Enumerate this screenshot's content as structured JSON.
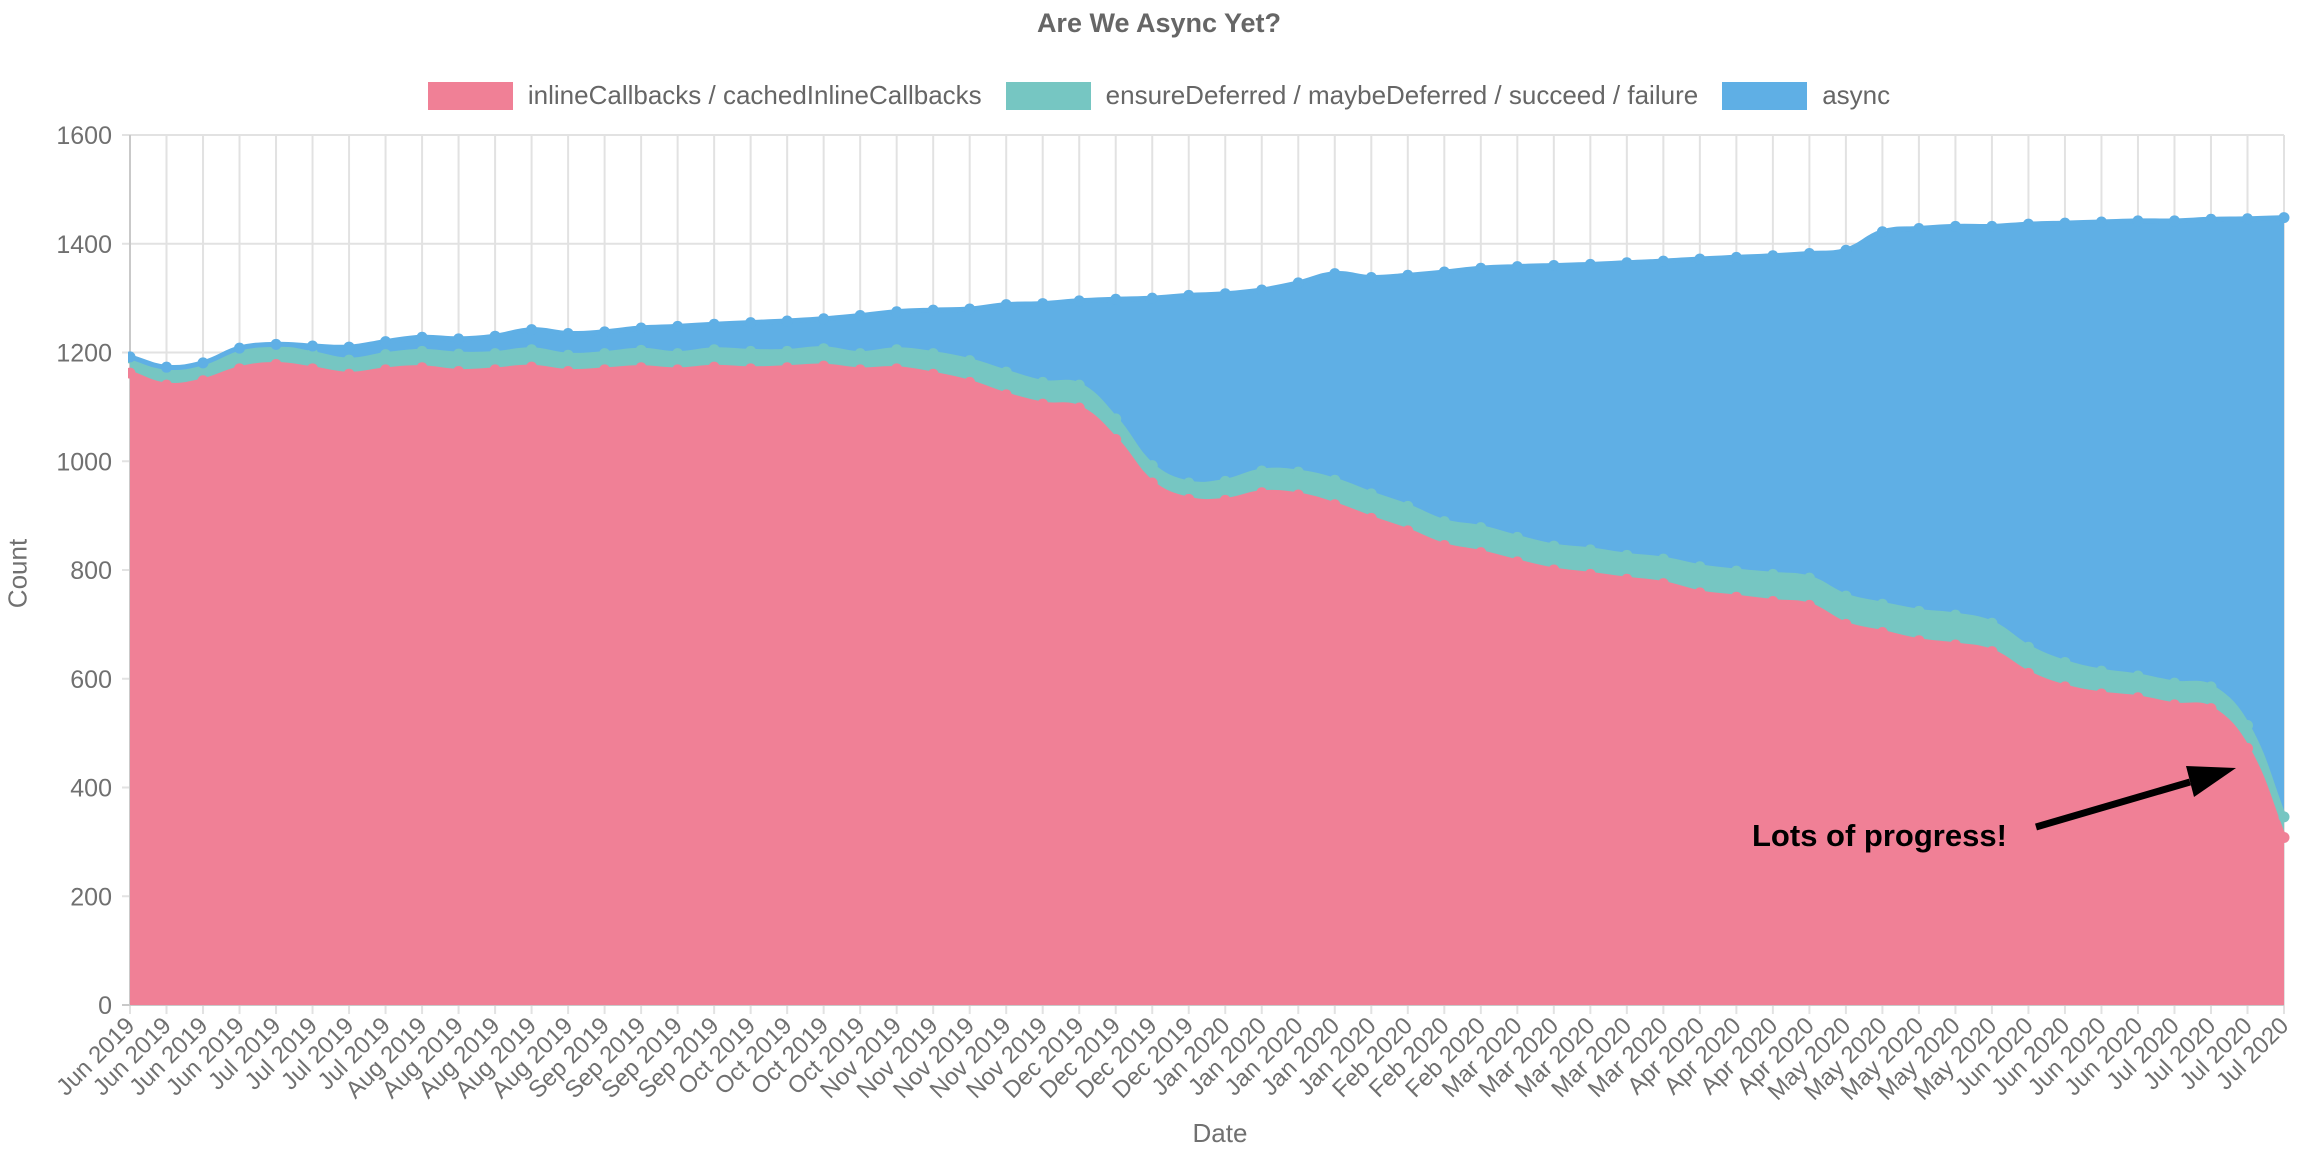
{
  "title": "Are We Async Yet?",
  "legend": [
    {
      "label": "inlineCallbacks / cachedInlineCallbacks",
      "color": "#F08096"
    },
    {
      "label": "ensureDeferred / maybeDeferred / succeed / failure",
      "color": "#76C6C2"
    },
    {
      "label": "async",
      "color": "#5FAFE5"
    }
  ],
  "axes": {
    "x_label": "Date",
    "y_label": "Count",
    "y_ticks": [
      0,
      200,
      400,
      600,
      800,
      1000,
      1200,
      1400,
      1600
    ]
  },
  "annotation": {
    "text": "Lots of progress!"
  },
  "colors": {
    "grid": "#E2E2E2",
    "axis": "#C9C9C9",
    "tick_text": "#707070",
    "annotation": "#000000"
  },
  "chart_data": {
    "type": "area",
    "stacked": true,
    "title": "Are We Async Yet?",
    "xlabel": "Date",
    "ylabel": "Count",
    "ylim": [
      0,
      1600
    ],
    "grid": true,
    "legend_position": "top",
    "x": [
      "Jun 2019",
      "Jun 2019",
      "Jun 2019",
      "Jun 2019",
      "Jul 2019",
      "Jul 2019",
      "Jul 2019",
      "Jul 2019",
      "Aug 2019",
      "Aug 2019",
      "Aug 2019",
      "Aug 2019",
      "Aug 2019",
      "Sep 2019",
      "Sep 2019",
      "Sep 2019",
      "Sep 2019",
      "Oct 2019",
      "Oct 2019",
      "Oct 2019",
      "Oct 2019",
      "Nov 2019",
      "Nov 2019",
      "Nov 2019",
      "Nov 2019",
      "Nov 2019",
      "Dec 2019",
      "Dec 2019",
      "Dec 2019",
      "Dec 2019",
      "Jan 2020",
      "Jan 2020",
      "Jan 2020",
      "Jan 2020",
      "Jan 2020",
      "Feb 2020",
      "Feb 2020",
      "Feb 2020",
      "Mar 2020",
      "Mar 2020",
      "Mar 2020",
      "Mar 2020",
      "Mar 2020",
      "Apr 2020",
      "Apr 2020",
      "Apr 2020",
      "Apr 2020",
      "May 2020",
      "May 2020",
      "May 2020",
      "May 2020",
      "May 2020",
      "Jun 2020",
      "Jun 2020",
      "Jun 2020",
      "Jun 2020",
      "Jul 2020",
      "Jul 2020",
      "Jul 2020",
      "Jul 2020"
    ],
    "series": [
      {
        "name": "inlineCallbacks / cachedInlineCallbacks",
        "color": "#F08096",
        "values": [
          1162,
          1140,
          1148,
          1170,
          1178,
          1170,
          1160,
          1168,
          1172,
          1165,
          1168,
          1173,
          1165,
          1168,
          1172,
          1168,
          1173,
          1170,
          1172,
          1175,
          1168,
          1170,
          1160,
          1145,
          1122,
          1105,
          1098,
          1040,
          960,
          930,
          928,
          942,
          938,
          920,
          895,
          872,
          845,
          832,
          815,
          800,
          792,
          783,
          775,
          758,
          750,
          742,
          735,
          700,
          685,
          670,
          662,
          650,
          610,
          585,
          572,
          565,
          552,
          545,
          472,
          308
        ]
      },
      {
        "name": "ensureDeferred / maybeDeferred / succeed / failure",
        "color": "#76C6C2",
        "values": [
          28,
          30,
          28,
          30,
          30,
          28,
          26,
          28,
          30,
          32,
          30,
          32,
          30,
          30,
          32,
          30,
          32,
          32,
          30,
          32,
          30,
          35,
          38,
          40,
          42,
          40,
          42,
          38,
          32,
          30,
          35,
          40,
          42,
          45,
          45,
          45,
          44,
          46,
          45,
          44,
          45,
          44,
          45,
          48,
          48,
          50,
          50,
          52,
          52,
          54,
          55,
          52,
          48,
          45,
          42,
          40,
          40,
          40,
          42,
          38
        ]
      },
      {
        "name": "async",
        "color": "#5FAFE5",
        "values": [
          2,
          3,
          5,
          8,
          7,
          14,
          24,
          24,
          26,
          28,
          32,
          37,
          40,
          40,
          41,
          50,
          47,
          53,
          56,
          55,
          70,
          70,
          80,
          95,
          124,
          145,
          155,
          220,
          308,
          345,
          345,
          333,
          348,
          380,
          398,
          425,
          459,
          477,
          498,
          516,
          525,
          538,
          548,
          566,
          577,
          586,
          597,
          636,
          685,
          704,
          715,
          730,
          778,
          808,
          826,
          837,
          850,
          860,
          932,
          1102
        ]
      }
    ]
  }
}
